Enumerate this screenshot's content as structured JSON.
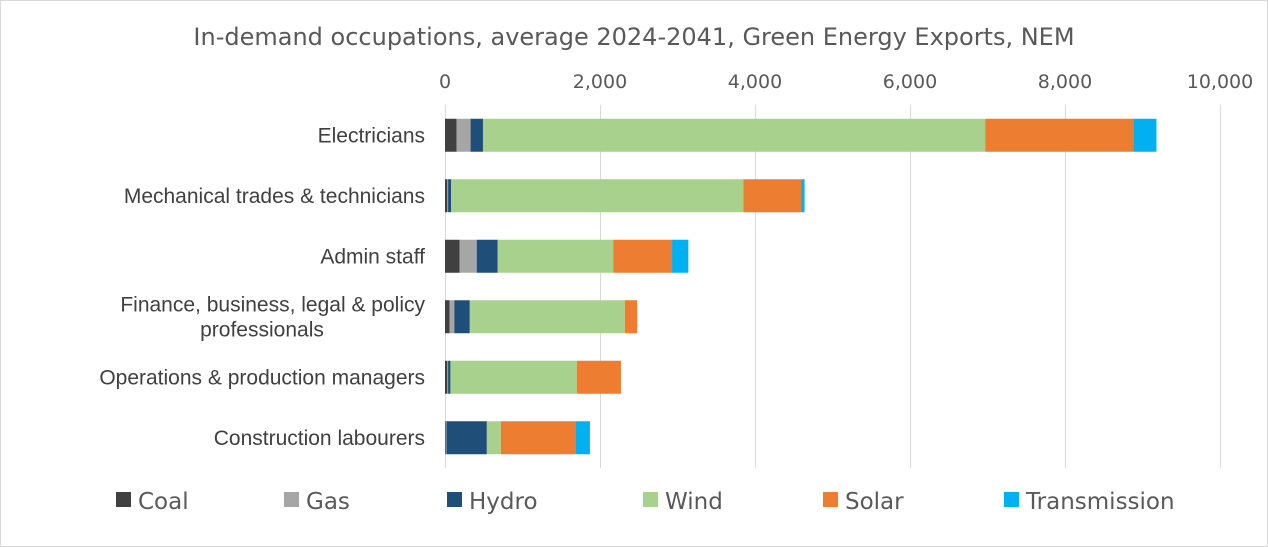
{
  "chart_data": {
    "type": "bar",
    "orientation": "horizontal",
    "stacked": true,
    "title": "In-demand occupations, average 2024-2041, Green Energy Exports, NEM",
    "categories": [
      [
        "Electricians"
      ],
      [
        "Mechanical trades & technicians"
      ],
      [
        "Admin staff"
      ],
      [
        "Finance, business, legal & policy",
        "professionals"
      ],
      [
        "Operations & production managers"
      ],
      [
        "Construction labourers"
      ]
    ],
    "xlim": [
      0,
      10000
    ],
    "xticks": [
      0,
      2000,
      4000,
      6000,
      8000,
      10000
    ],
    "xtick_labels": [
      "0",
      "2,000",
      "4,000",
      "6,000",
      "8,000",
      "10,000"
    ],
    "x_axis_position": "top",
    "grid": true,
    "legend_position": "bottom",
    "series": [
      {
        "name": "Coal",
        "color": "#404040",
        "values": [
          150,
          30,
          190,
          60,
          30,
          10
        ]
      },
      {
        "name": "Gas",
        "color": "#a6a6a6",
        "values": [
          180,
          10,
          220,
          60,
          10,
          10
        ]
      },
      {
        "name": "Hydro",
        "color": "#1f4e79",
        "values": [
          160,
          40,
          270,
          200,
          30,
          520
        ]
      },
      {
        "name": "Wind",
        "color": "#a9d18e",
        "values": [
          6480,
          3770,
          1490,
          2000,
          1630,
          180
        ]
      },
      {
        "name": "Solar",
        "color": "#ed7d31",
        "values": [
          1910,
          750,
          760,
          160,
          570,
          970
        ]
      },
      {
        "name": "Transmission",
        "color": "#00b0f0",
        "values": [
          300,
          40,
          210,
          0,
          0,
          180
        ]
      }
    ]
  }
}
